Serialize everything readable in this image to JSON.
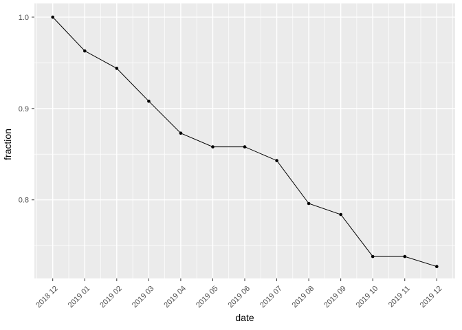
{
  "chart_data": {
    "type": "line",
    "title": "",
    "xlabel": "date",
    "ylabel": "fraction",
    "categories": [
      "2018 12",
      "2019 01",
      "2019 02",
      "2019 03",
      "2019 04",
      "2019 05",
      "2019 06",
      "2019 07",
      "2019 08",
      "2019 09",
      "2019 10",
      "2019 11",
      "2019 12"
    ],
    "values": [
      1.0,
      0.963,
      0.944,
      0.908,
      0.873,
      0.858,
      0.858,
      0.843,
      0.796,
      0.784,
      0.738,
      0.738,
      0.727
    ],
    "y_ticks": [
      0.8,
      0.9,
      1.0
    ],
    "y_tick_labels": [
      "0.8",
      "0.9",
      "1.0"
    ],
    "y_minor_ticks": [
      0.75,
      0.85,
      0.95
    ],
    "ylim": [
      0.714,
      1.015
    ],
    "grid": true,
    "legend": false,
    "x_label_rotation_deg": 45,
    "style": "ggplot2",
    "colors": {
      "panel_bg": "#EBEBEB",
      "grid": "#FFFFFF",
      "line": "#000000",
      "point": "#000000",
      "tick_mark": "#333333",
      "tick_label": "#4D4D4D",
      "axis_title": "#000000",
      "page_bg": "#FFFFFF"
    }
  }
}
